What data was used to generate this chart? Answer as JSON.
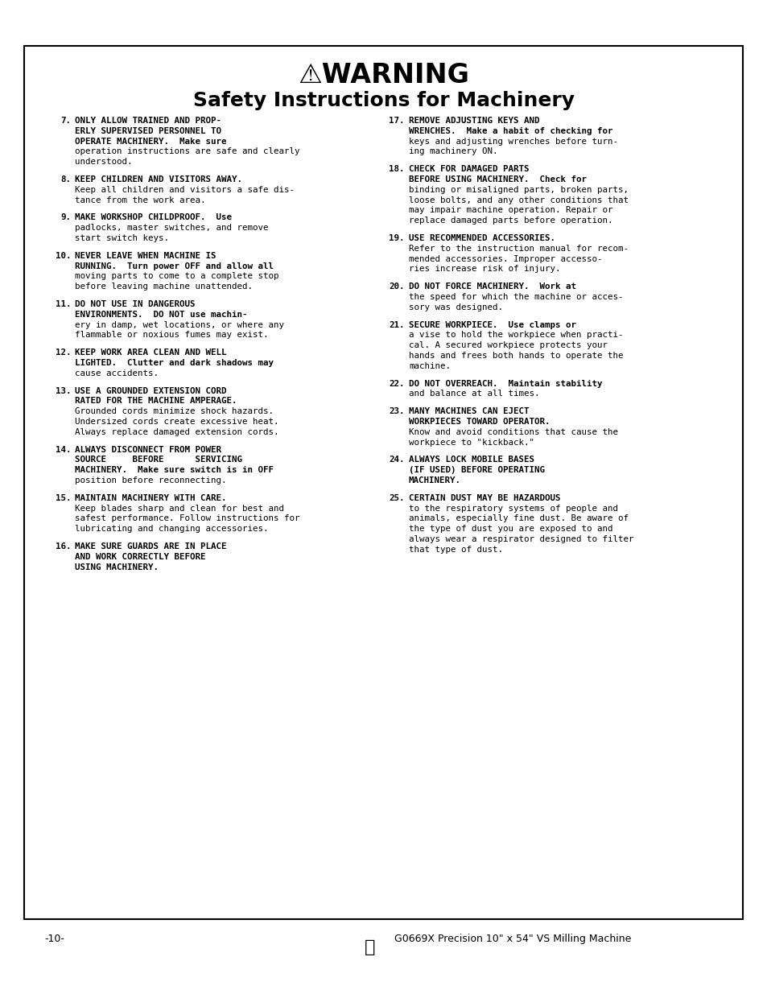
{
  "page_bg": "#ffffff",
  "border_color": "#000000",
  "text_color": "#000000",
  "title_warning": "⚠WARNING",
  "title_sub": "Safety Instructions for Machinery",
  "footer_left": "-10-",
  "footer_right": "G0669X Precision 10\" x 54\" VS Milling Machine",
  "left_items": [
    {
      "num": "7.",
      "bold": "ONLY ALLOW TRAINED AND PROP-\nERLY SUPERVISED PERSONNEL TO\nOPERATE MACHINERY.",
      "normal": " Make sure\noperation instructions are safe and clearly\nunderstood."
    },
    {
      "num": "8.",
      "bold": "KEEP CHILDREN AND VISITORS AWAY.",
      "normal": "\nKeep all children and visitors a safe dis-\ntance from the work area."
    },
    {
      "num": "9.",
      "bold": "MAKE WORKSHOP CHILDPROOF.",
      "normal": " Use\npadlocks, master switches, and remove\nstart switch keys."
    },
    {
      "num": "10.",
      "bold": "NEVER LEAVE WHEN MACHINE IS\nRUNNING.",
      "normal": " Turn power OFF and allow all\nmoving parts to come to a complete stop\nbefore leaving machine unattended."
    },
    {
      "num": "11.",
      "bold": "DO NOT USE IN DANGEROUS\nENVIRONMENTS.",
      "normal": " DO NOT use machin-\nery in damp, wet locations, or where any\nflammable or noxious fumes may exist."
    },
    {
      "num": "12.",
      "bold": "KEEP WORK AREA CLEAN AND WELL\nLIGHTED.",
      "normal": " Clutter and dark shadows may\ncause accidents."
    },
    {
      "num": "13.",
      "bold": "USE A GROUNDED EXTENSION CORD\nRATED FOR THE MACHINE AMPERAGE.",
      "normal": "\nGrounded cords minimize shock hazards.\nUndersized cords create excessive heat.\nAlways replace damaged extension cords."
    },
    {
      "num": "14.",
      "bold": "ALWAYS DISCONNECT FROM POWER\nSOURCE BEFORE SERVICING\nMACHINERY.",
      "normal": " Make sure switch is in OFF\nposition before reconnecting."
    },
    {
      "num": "15.",
      "bold": "MAINTAIN MACHINERY WITH CARE.",
      "normal": "\nKeep blades sharp and clean for best and\nsafest performance. Follow instructions for\nlubricating and changing accessories."
    },
    {
      "num": "16.",
      "bold": "MAKE SURE GUARDS ARE IN PLACE\nAND WORK CORRECTLY BEFORE\nUSING MACHINERY.",
      "normal": ""
    }
  ],
  "right_items": [
    {
      "num": "17.",
      "bold": "REMOVE ADJUSTING KEYS AND\nWRENCHES.",
      "normal": " Make a habit of checking for\nkeys and adjusting wrenches before turn-\ning machinery ON."
    },
    {
      "num": "18.",
      "bold": "CHECK FOR DAMAGED PARTS\nBEFORE USING MACHINERY.",
      "normal": " Check for\nbinding or misaligned parts, broken parts,\nloose bolts, and any other conditions that\nmay impair machine operation. Repair or\nreplace damaged parts before operation."
    },
    {
      "num": "19.",
      "bold": "USE RECOMMENDED ACCESSORIES.",
      "normal": "\nRefer to the instruction manual for recom-\nmended accessories. Improper accesso-\nries increase risk of injury."
    },
    {
      "num": "20.",
      "bold": "DO NOT FORCE MACHINERY.",
      "normal": " Work at\nthe speed for which the machine or acces-\nsory was designed."
    },
    {
      "num": "21.",
      "bold": "SECURE WORKPIECE.",
      "normal": " Use clamps or\na vise to hold the workpiece when practi-\ncal. A secured workpiece protects your\nhands and frees both hands to operate the\nmachine."
    },
    {
      "num": "22.",
      "bold": "DO NOT OVERREACH.",
      "normal": " Maintain stability\nand balance at all times."
    },
    {
      "num": "23.",
      "bold": "MANY MACHINES CAN EJECT\nWORKPIECES TOWARD OPERATOR.",
      "normal": "\nKnow and avoid conditions that cause the\nworkpiece to \"kickback.\""
    },
    {
      "num": "24.",
      "bold": "ALWAYS LOCK MOBILE BASES\n(IF USED) BEFORE OPERATING\nMACHINERY.",
      "normal": ""
    },
    {
      "num": "25.",
      "bold": "CERTAIN DUST MAY BE HAZARDOUS",
      "normal": "\nto the respiratory systems of people and\nanimals, especially fine dust. Be aware of\nthe type of dust you are exposed to and\nalways wear a respirator designed to filter\nthat type of dust."
    }
  ]
}
